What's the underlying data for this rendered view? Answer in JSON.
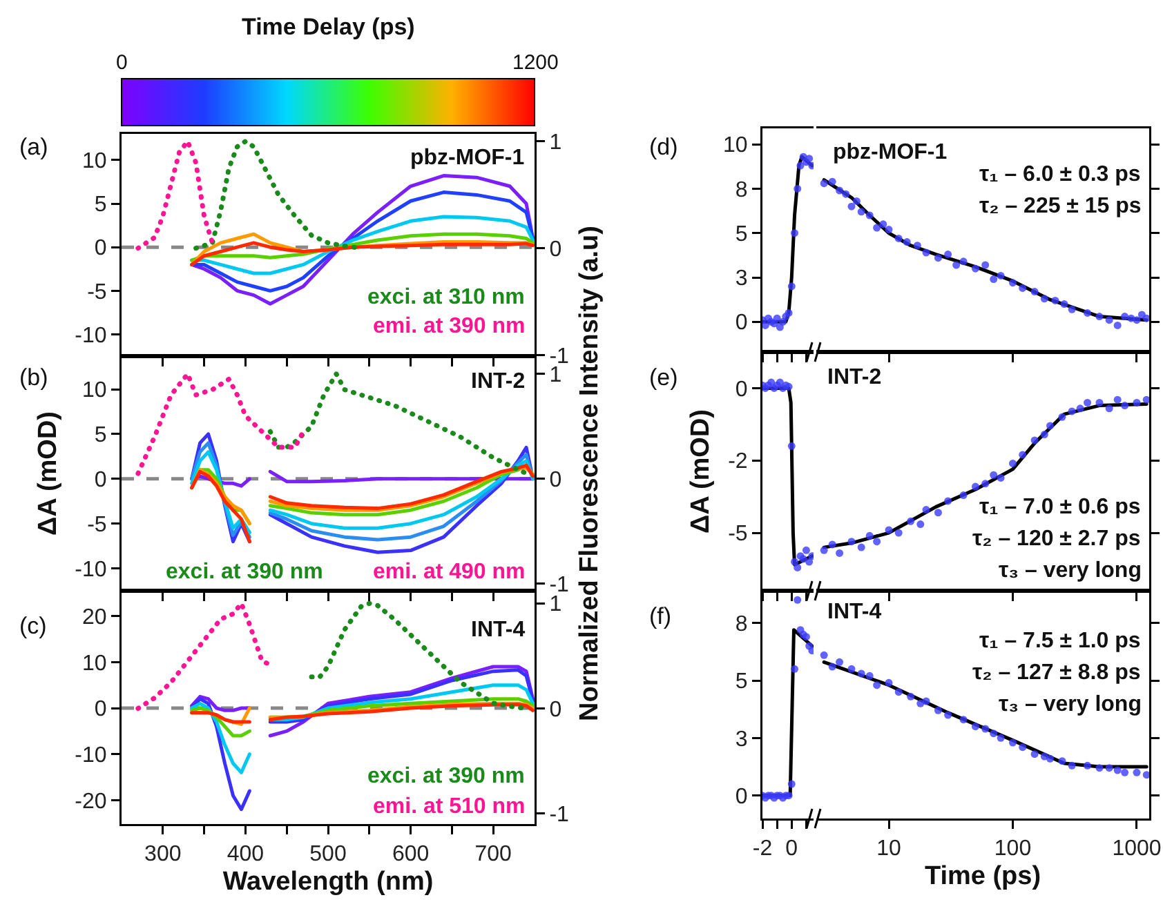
{
  "chart_data": [
    {
      "type": "line",
      "clabel": "Time Delay (ps)",
      "clim": [
        0,
        1200
      ],
      "cticks": [
        0,
        1200
      ],
      "tick_labels": "y",
      "annotations": [
        "(a)",
        "pbz-MOF-1"
      ],
      "x": [
        335,
        350,
        370,
        390,
        410,
        430,
        450,
        470,
        500,
        530,
        560,
        600,
        640,
        680,
        720,
        740,
        748
      ],
      "xlim": [
        250,
        750
      ],
      "xticks": [
        300,
        {
          "value": 350,
          "label": null
        },
        400,
        {
          "value": 450,
          "label": null
        },
        500,
        {
          "value": 550,
          "label": null
        },
        600,
        {
          "value": 650,
          "label": null
        },
        700
      ],
      "ylim": [
        -12.5,
        13
      ],
      "yticks": [
        -10,
        -5,
        0,
        5,
        10
      ],
      "y2lim": [
        -1.01,
        1.07
      ],
      "y2ticks": [
        -1,
        0,
        1
      ],
      "ref_lines": [
        {
          "axis": "y",
          "value": 0,
          "color": "#888888",
          "line_style": "dashed"
        }
      ],
      "series": [
        {
          "color": "#7a1fff",
          "line_style": "solid",
          "values": [
            -2,
            -2.5,
            -3.5,
            -5,
            -5.5,
            -6.5,
            -5.5,
            -4.5,
            -1.5,
            1.5,
            4,
            7,
            8.2,
            8,
            7,
            5,
            1
          ]
        },
        {
          "color": "#2040ff",
          "line_style": "solid",
          "values": [
            -2,
            -2,
            -3,
            -4,
            -4.5,
            -5,
            -4.5,
            -3.5,
            -1,
            1,
            3,
            5.3,
            6.3,
            6,
            5.3,
            4,
            1
          ]
        },
        {
          "color": "#00c8f0",
          "line_style": "solid",
          "values": [
            -1.5,
            -1.5,
            -2,
            -2.5,
            -3,
            -3,
            -2.5,
            -2,
            -0.5,
            0.8,
            1.8,
            3,
            3.5,
            3.4,
            3,
            2.3,
            0.8
          ]
        },
        {
          "color": "#5ad000",
          "line_style": "solid",
          "values": [
            -1.5,
            -1,
            -1,
            -1,
            -1,
            -1.2,
            -1,
            -0.8,
            -0.2,
            0.3,
            0.8,
            1.3,
            1.5,
            1.5,
            1.3,
            1,
            0.5
          ]
        },
        {
          "color": "#ff9a00",
          "line_style": "solid",
          "values": [
            -2,
            -0.5,
            0.5,
            1,
            1.5,
            0.5,
            0,
            -0.5,
            -0.3,
            0,
            0.2,
            0.4,
            0.6,
            0.6,
            0.5,
            0.5,
            0.3
          ]
        },
        {
          "color": "#ff2a00",
          "line_style": "solid",
          "values": [
            -2,
            -1,
            -0.5,
            0,
            0.5,
            0,
            -0.3,
            -0.5,
            -0.3,
            0,
            0.1,
            0.2,
            0.3,
            0.3,
            0.3,
            0.4,
            0.2
          ]
        },
        {
          "name": "exci. at 310 nm",
          "color": "#1a8a1a",
          "line_style": "dotted",
          "axis": "y2",
          "x": [
            340,
            360,
            370,
            380,
            390,
            400,
            410,
            420,
            440,
            460,
            480,
            500,
            520,
            540
          ],
          "values": [
            0,
            0.05,
            0.35,
            0.75,
            0.95,
            1.0,
            0.95,
            0.8,
            0.5,
            0.3,
            0.12,
            0.05,
            0.02,
            0
          ]
        },
        {
          "name": "emi. at 390 nm",
          "color": "#ff1493",
          "line_style": "dotted",
          "axis": "y2",
          "x": [
            270,
            290,
            300,
            310,
            320,
            330,
            340,
            350,
            360
          ],
          "values": [
            0,
            0.1,
            0.3,
            0.6,
            0.9,
            1.0,
            0.8,
            0.3,
            0.05
          ]
        }
      ]
    },
    {
      "type": "line",
      "tick_labels": "y",
      "ylabel": "ΔA (mOD)",
      "y2label": "Normalized Fluorescence Intensity (a.u)",
      "annotations": [
        "(b)",
        "INT-2"
      ],
      "x": [
        335,
        345,
        355,
        365,
        375,
        385,
        395,
        405,
        418,
        430,
        450,
        480,
        520,
        560,
        600,
        640,
        680,
        710,
        730,
        740,
        748
      ],
      "xlim": [
        250,
        750
      ],
      "xticks": [
        300,
        {
          "value": 350,
          "label": null
        },
        400,
        {
          "value": 450,
          "label": null
        },
        500,
        {
          "value": 550,
          "label": null
        },
        600,
        {
          "value": 650,
          "label": null
        },
        700
      ],
      "ylim": [
        -12.5,
        13.7
      ],
      "yticks": [
        -10,
        -5,
        0,
        5,
        10
      ],
      "y2lim": [
        -1.07,
        1.17
      ],
      "y2ticks": [
        -1,
        0,
        1
      ],
      "ref_lines": [
        {
          "axis": "y",
          "value": 0,
          "color": "#888888",
          "line_style": "dashed"
        }
      ],
      "series": [
        {
          "color": "#7a1fff",
          "line_style": "solid",
          "values": [
            0,
            0.3,
            0,
            -0.3,
            -0.5,
            -0.5,
            -0.8,
            0,
            null,
            0.8,
            -0.3,
            -0.3,
            -0.2,
            0,
            0,
            0,
            0,
            0,
            0,
            0,
            0
          ]
        },
        {
          "color": "#3a30ff",
          "line_style": "solid",
          "values": [
            0,
            4,
            5,
            2,
            -3,
            -7,
            -5,
            -7,
            null,
            -4,
            -5,
            -6.5,
            -7.5,
            -8.2,
            -8,
            -6.5,
            -3,
            -0.5,
            2,
            3.5,
            0
          ]
        },
        {
          "color": "#2a8df4",
          "line_style": "solid",
          "values": [
            0,
            3,
            4,
            1.5,
            -2.8,
            -6.3,
            -4.8,
            -6.5,
            null,
            -3.8,
            -4.5,
            -5.8,
            -6.5,
            -6.8,
            -6.5,
            -5.3,
            -2.5,
            -0.2,
            1.8,
            2.7,
            0
          ]
        },
        {
          "color": "#00c8f0",
          "line_style": "solid",
          "values": [
            -0.5,
            2,
            3,
            1,
            -2.5,
            -5.5,
            -4.5,
            -6,
            null,
            -3.5,
            -4,
            -5,
            -5.5,
            -5.5,
            -5,
            -4,
            -2,
            0,
            1.5,
            2,
            0
          ]
        },
        {
          "color": "#5ad000",
          "line_style": "solid",
          "values": [
            -1,
            1,
            1,
            0,
            -2,
            -3.5,
            -3.5,
            -5,
            null,
            -3,
            -3.3,
            -3.8,
            -4,
            -4,
            -3.5,
            -2.5,
            -1,
            0.5,
            1,
            1.5,
            0.5
          ]
        },
        {
          "color": "#ff9a00",
          "line_style": "solid",
          "values": [
            -1,
            1,
            0.5,
            -0.5,
            -2,
            -3,
            -3.5,
            -5,
            null,
            -2.5,
            -3,
            -3.3,
            -3.5,
            -3.5,
            -3,
            -2,
            -0.5,
            0.7,
            1.2,
            1.2,
            0.5
          ]
        },
        {
          "color": "#ff2a00",
          "line_style": "solid",
          "values": [
            -1,
            0.8,
            0.3,
            -0.8,
            -2.5,
            -3.5,
            -4.5,
            -7,
            null,
            -2,
            -2.7,
            -3,
            -3.2,
            -3.3,
            -2.8,
            -1.8,
            -0.3,
            0.8,
            1.2,
            1.5,
            0.3
          ]
        },
        {
          "name": "exci. at 390 nm",
          "color": "#1a8a1a",
          "line_style": "dotted",
          "axis": "y2",
          "x": [
            430,
            440,
            450,
            460,
            480,
            495,
            510,
            520,
            540,
            580,
            620,
            660,
            700,
            740
          ],
          "values": [
            0.45,
            0.3,
            0.3,
            0.35,
            0.5,
            0.8,
            1.0,
            0.85,
            0.8,
            0.7,
            0.55,
            0.4,
            0.2,
            0.05
          ]
        },
        {
          "name": "emi. at 490 nm",
          "color": "#ff1493",
          "line_style": "dotted",
          "axis": "y2",
          "x": [
            270,
            290,
            310,
            330,
            340,
            360,
            380,
            390,
            400,
            420,
            440,
            450,
            460,
            470
          ],
          "values": [
            0.05,
            0.4,
            0.8,
            1.0,
            0.8,
            0.85,
            0.95,
            0.8,
            0.6,
            0.45,
            0.3,
            0.3,
            0.3,
            0.45
          ]
        }
      ]
    },
    {
      "type": "line",
      "xlabel": "Wavelength (nm)",
      "annotations": [
        "(c)",
        "INT-4"
      ],
      "x": [
        335,
        345,
        355,
        365,
        375,
        385,
        395,
        405,
        418,
        430,
        450,
        470,
        500,
        550,
        600,
        650,
        700,
        730,
        740,
        748
      ],
      "xlim": [
        250,
        750
      ],
      "xticks": [
        300,
        {
          "value": 350,
          "label": null
        },
        400,
        {
          "value": 450,
          "label": null
        },
        500,
        {
          "value": 550,
          "label": null
        },
        600,
        {
          "value": 650,
          "label": null
        },
        700
      ],
      "ylim": [
        -25.2,
        25.5
      ],
      "yticks": [
        -20,
        -10,
        0,
        10,
        20
      ],
      "y2lim": [
        -1.1,
        1.12
      ],
      "y2ticks": [
        -1,
        0,
        1
      ],
      "ref_lines": [
        {
          "axis": "y",
          "value": 0,
          "color": "#888888",
          "line_style": "dashed"
        }
      ],
      "series": [
        {
          "color": "#7a1fff",
          "line_style": "solid",
          "values": [
            0.5,
            2.5,
            2,
            0,
            -0.5,
            -0.5,
            0,
            0,
            null,
            -6,
            -5,
            -3,
            1,
            2.5,
            3.5,
            6.5,
            9,
            9,
            8,
            2
          ]
        },
        {
          "color": "#3a30ff",
          "line_style": "solid",
          "values": [
            0,
            2,
            1,
            -4,
            -12,
            -19,
            -22,
            -18,
            null,
            -3,
            -3,
            -2.5,
            0.5,
            2,
            3,
            6,
            8,
            8.3,
            7,
            1.5
          ]
        },
        {
          "color": "#00c8f0",
          "line_style": "solid",
          "values": [
            0,
            1,
            0,
            -3,
            -8,
            -12,
            -14,
            -10,
            null,
            -2.5,
            -2.5,
            -2,
            0,
            1.2,
            2,
            3.5,
            5,
            5,
            4,
            1
          ]
        },
        {
          "color": "#5ad000",
          "line_style": "solid",
          "values": [
            -0.5,
            0,
            -0.5,
            -2,
            -4,
            -6,
            -6,
            -5,
            null,
            -2,
            -2,
            -1.8,
            -0.5,
            0.5,
            1,
            1.5,
            2,
            2,
            1.5,
            0.5
          ]
        },
        {
          "color": "#ff9a00",
          "line_style": "solid",
          "values": [
            -1,
            -1,
            -1,
            -1.5,
            -2.5,
            -3,
            -3.5,
            0,
            null,
            -2,
            -2,
            -1.8,
            -1,
            -0.5,
            0.3,
            0.8,
            1,
            1,
            0.8,
            0
          ]
        },
        {
          "color": "#ff2a00",
          "line_style": "solid",
          "values": [
            -1,
            -1,
            -1,
            -1.5,
            -2.5,
            -3,
            -3,
            -3,
            null,
            -2.5,
            -2,
            -1.8,
            -1.2,
            -0.8,
            0,
            0.5,
            0.7,
            0.8,
            0.5,
            -0.5
          ]
        },
        {
          "name": "exci. at 390 nm",
          "color": "#1a8a1a",
          "line_style": "dotted",
          "axis": "y2",
          "x": [
            480,
            490,
            500,
            520,
            540,
            550,
            560,
            580,
            600,
            620,
            640,
            660,
            680,
            700,
            720,
            740
          ],
          "values": [
            0.3,
            0.3,
            0.4,
            0.75,
            0.97,
            1.0,
            0.98,
            0.85,
            0.7,
            0.55,
            0.4,
            0.25,
            0.15,
            0.05,
            0.02,
            0
          ]
        },
        {
          "name": "emi. at 510 nm",
          "color": "#ff1493",
          "line_style": "dotted",
          "axis": "y2",
          "x": [
            270,
            290,
            310,
            330,
            350,
            370,
            385,
            395,
            405,
            420,
            435
          ],
          "values": [
            0,
            0.1,
            0.25,
            0.45,
            0.65,
            0.85,
            0.9,
            1.0,
            0.8,
            0.45,
            0.4
          ]
        }
      ]
    },
    {
      "type": "scatter",
      "marker": "circle",
      "tick_labels": "y",
      "annotations": [
        "(d)"
      ],
      "xlim": [
        -2,
        1.5
      ],
      "xticks": [
        -2,
        {
          "value": -1,
          "label": null
        },
        0,
        {
          "value": 1,
          "label": null
        }
      ],
      "ylim": [
        -1.7,
        10.9
      ],
      "yticks": [
        0,
        {
          "value": 2.5,
          "label": "3"
        },
        5,
        {
          "value": 7.5,
          "label": "8"
        },
        10
      ],
      "series": [
        {
          "color": "#3b3bff",
          "x": [
            -2,
            -1.8,
            -1.6,
            -1.4,
            -1.2,
            -1,
            -0.8,
            -0.6,
            -0.4,
            -0.2,
            0,
            0.2,
            0.4,
            0.6,
            0.8,
            1,
            1.2,
            1.4
          ],
          "values": [
            0.1,
            -0.2,
            0.2,
            0,
            -0.1,
            0.2,
            -0.3,
            0,
            0.3,
            0.5,
            2,
            5,
            7.5,
            8.8,
            9.3,
            9,
            9.2,
            8.8
          ]
        },
        {
          "type": "line",
          "marker": "none",
          "color": "#000000",
          "x": [
            -2,
            -0.4,
            -0.2,
            0,
            0.2,
            0.5,
            0.7,
            1.4
          ],
          "values": [
            0,
            0,
            0.5,
            2.5,
            6,
            8.8,
            9.3,
            8.8
          ]
        }
      ]
    },
    {
      "type": "scatter",
      "marker": "circle",
      "tick_labels": false,
      "log": "x",
      "annotations": [
        "pbz-MOF-1",
        "τ₁ – 6.0 ± 0.3 ps",
        "τ₂ – 225 ± 15 ps"
      ],
      "xlim": [
        2.6,
        1260
      ],
      "xticks": [
        10,
        100,
        1000
      ],
      "ylim": [
        -1.7,
        10.9
      ],
      "yticks": [
        {
          "value": 0,
          "label": null
        },
        {
          "value": 2.5,
          "label": null
        },
        {
          "value": 5,
          "label": null
        },
        {
          "value": 7.5,
          "label": null
        },
        {
          "value": 10,
          "label": null
        }
      ],
      "series": [
        {
          "color": "#3b3bff",
          "x": [
            3,
            3.5,
            4,
            4.5,
            5,
            5.5,
            6,
            7,
            8,
            9,
            10,
            12,
            14,
            17,
            20,
            25,
            30,
            35,
            40,
            50,
            60,
            70,
            80,
            100,
            120,
            150,
            180,
            220,
            260,
            300,
            400,
            500,
            600,
            700,
            800,
            900,
            1000,
            1100,
            1200
          ],
          "values": [
            7.8,
            7.9,
            7.4,
            7.2,
            6.5,
            6.8,
            6.2,
            6,
            5.3,
            5.5,
            5.2,
            4.7,
            4.5,
            4.3,
            3.9,
            3.6,
            3.8,
            3.2,
            3.4,
            3,
            3.2,
            2.4,
            2.6,
            2.2,
            1.9,
            1.7,
            1.3,
            1.2,
            1,
            0.7,
            0.5,
            0.3,
            0.1,
            -0.2,
            0.3,
            0.2,
            0.1,
            0.4,
            0.2
          ]
        },
        {
          "type": "line",
          "marker": "none",
          "color": "#000000",
          "x": [
            3,
            5,
            7,
            10,
            15,
            24,
            50,
            100,
            200,
            500,
            1200
          ],
          "values": [
            8,
            7,
            6,
            5,
            4.3,
            3.8,
            3.1,
            2.3,
            1.25,
            0.3,
            0.1
          ]
        }
      ]
    },
    {
      "type": "scatter",
      "marker": "circle",
      "tick_labels": "y",
      "ylabel": "ΔA (mOD)",
      "annotations": [
        "(e)"
      ],
      "xlim": [
        -2,
        1.5
      ],
      "xticks": [
        -2,
        {
          "value": -1,
          "label": null
        },
        0,
        {
          "value": 1,
          "label": null
        }
      ],
      "ylim": [
        -7,
        1.25
      ],
      "yticks": [
        -5,
        {
          "value": -2.5,
          "label": "-2"
        },
        0
      ],
      "series": [
        {
          "color": "#3b3bff",
          "x": [
            -2,
            -1.8,
            -1.6,
            -1.4,
            -1.2,
            -1,
            -0.8,
            -0.6,
            -0.4,
            -0.2,
            0,
            0.2,
            0.4,
            0.6,
            0.8,
            1,
            1.2,
            1.4
          ],
          "values": [
            0.1,
            0,
            0.1,
            0.2,
            0,
            0.1,
            0.2,
            0,
            0.1,
            0.05,
            -2,
            -6,
            -6.2,
            -5.8,
            -5.9,
            -5.6,
            -6,
            -5.8
          ]
        },
        {
          "type": "line",
          "marker": "none",
          "color": "#000000",
          "x": [
            -2,
            -0.2,
            -0.05,
            0.1,
            0.2,
            1.4
          ],
          "values": [
            0,
            0,
            -0.5,
            -5,
            -6.1,
            -5.8
          ]
        }
      ]
    },
    {
      "type": "scatter",
      "marker": "circle",
      "tick_labels": false,
      "log": "x",
      "annotations": [
        "INT-2",
        "τ₁ – 7.0 ± 0.6 ps",
        "τ₂ – 120 ± 2.7 ps",
        "τ₃ – very long"
      ],
      "xlim": [
        2.6,
        1260
      ],
      "xticks": [
        10,
        100,
        1000
      ],
      "ylim": [
        -7,
        1.25
      ],
      "yticks": [
        {
          "value": -5,
          "label": null
        },
        {
          "value": -2.5,
          "label": null
        },
        {
          "value": 0,
          "label": null
        }
      ],
      "series": [
        {
          "color": "#3b3bff",
          "x": [
            3,
            3.5,
            4,
            5,
            6,
            7,
            8,
            10,
            12,
            15,
            18,
            20,
            25,
            30,
            40,
            50,
            60,
            70,
            80,
            100,
            120,
            150,
            180,
            200,
            250,
            300,
            350,
            400,
            500,
            600,
            700,
            800,
            1000,
            1200
          ],
          "values": [
            -5.6,
            -5.4,
            -5.7,
            -5.3,
            -5.5,
            -5.1,
            -5.3,
            -4.9,
            -5,
            -4.6,
            -4.7,
            -4.2,
            -4.3,
            -3.9,
            -3.7,
            -3.4,
            -3.3,
            -3,
            -3.1,
            -2.6,
            -2.3,
            -1.8,
            -1.6,
            -1.3,
            -1,
            -0.8,
            -0.7,
            -0.5,
            -0.5,
            -0.7,
            -0.4,
            -0.6,
            -0.5,
            -0.4
          ]
        },
        {
          "type": "line",
          "marker": "none",
          "color": "#000000",
          "x": [
            3,
            5,
            10,
            24,
            50,
            100,
            150,
            260,
            500,
            1200
          ],
          "values": [
            -5.5,
            -5.35,
            -5,
            -4.1,
            -3.5,
            -2.8,
            -1.9,
            -0.9,
            -0.6,
            -0.55
          ]
        }
      ]
    },
    {
      "type": "scatter",
      "marker": "circle",
      "annotations": [
        "(f)"
      ],
      "xlim": [
        -2,
        1.5
      ],
      "xticks": [
        -2,
        {
          "value": -1,
          "label": null
        },
        0,
        {
          "value": 1,
          "label": null
        }
      ],
      "ylim": [
        -1,
        8.9
      ],
      "yticks": [
        0,
        {
          "value": 2.5,
          "label": "3"
        },
        5,
        {
          "value": 7.5,
          "label": "8"
        }
      ],
      "series": [
        {
          "color": "#3b3bff",
          "x": [
            -2,
            -1.8,
            -1.6,
            -1.4,
            -1.2,
            -1,
            -0.8,
            -0.6,
            -0.4,
            -0.2,
            0,
            0.2,
            0.4,
            0.6,
            0.8,
            1,
            1.2,
            1.4
          ],
          "values": [
            0,
            -0.1,
            0,
            0,
            -0.1,
            0,
            0,
            -0.1,
            0,
            0,
            0.5,
            5.5,
            8.5,
            7.2,
            7,
            6.9,
            6.5,
            6.3
          ]
        },
        {
          "type": "line",
          "marker": "none",
          "color": "#000000",
          "x": [
            -2,
            -0.1,
            0.15,
            1.4
          ],
          "values": [
            0,
            0,
            7.2,
            6.5
          ]
        }
      ]
    },
    {
      "type": "scatter",
      "marker": "circle",
      "tick_labels": "x",
      "log": "x",
      "xlabel": "Time (ps)",
      "annotations": [
        "INT-4",
        "τ₁ – 7.5 ± 1.0 ps",
        "τ₂ – 127 ± 8.8 ps",
        "τ₃ – very long"
      ],
      "xlim": [
        2.6,
        1260
      ],
      "xticks": [
        10,
        100,
        1000
      ],
      "ylim": [
        -1,
        8.9
      ],
      "yticks": [
        {
          "value": 0,
          "label": null
        },
        {
          "value": 2.5,
          "label": null
        },
        {
          "value": 5,
          "label": null
        },
        {
          "value": 7.5,
          "label": null
        }
      ],
      "series": [
        {
          "color": "#3b3bff",
          "x": [
            3,
            3.5,
            4,
            5,
            6,
            7,
            8,
            10,
            12,
            15,
            18,
            20,
            25,
            30,
            40,
            50,
            60,
            70,
            80,
            100,
            120,
            150,
            180,
            200,
            250,
            300,
            400,
            500,
            600,
            700,
            800,
            1000,
            1200
          ],
          "values": [
            6.1,
            5.6,
            5.8,
            5.5,
            5.3,
            5.2,
            4.8,
            4.9,
            4.5,
            4.3,
            4,
            4.1,
            3.7,
            3.5,
            3.3,
            3,
            2.9,
            2.7,
            2.5,
            2.3,
            2.1,
            1.8,
            1.7,
            1.6,
            1.5,
            1.3,
            1.3,
            1.2,
            1.2,
            1.1,
            1,
            1,
            0.9
          ]
        },
        {
          "type": "line",
          "marker": "none",
          "color": "#000000",
          "x": [
            3,
            10,
            30,
            100,
            260,
            500,
            1200
          ],
          "values": [
            5.8,
            4.8,
            3.6,
            2.4,
            1.4,
            1.25,
            1.25
          ]
        }
      ]
    }
  ]
}
